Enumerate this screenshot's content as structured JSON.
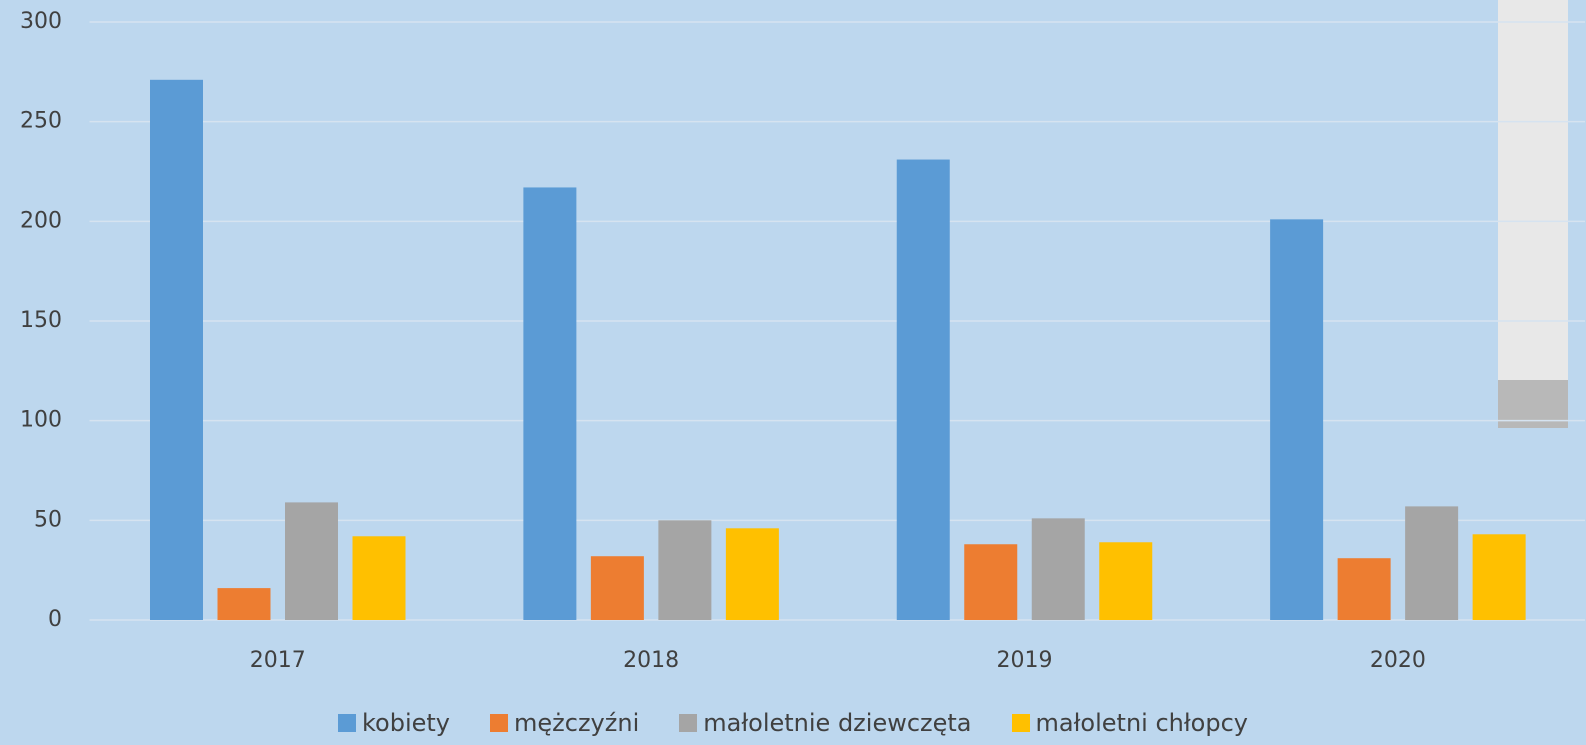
{
  "chart_data": {
    "type": "bar",
    "categories": [
      "2017",
      "2018",
      "2019",
      "2020"
    ],
    "series": [
      {
        "name": "kobiety",
        "color": "#5b9bd5",
        "values": [
          271,
          217,
          231,
          201
        ]
      },
      {
        "name": "mężczyźni",
        "color": "#ed7d31",
        "values": [
          16,
          32,
          38,
          31
        ]
      },
      {
        "name": "małoletnie dziewczęta",
        "color": "#a5a5a5",
        "values": [
          59,
          50,
          51,
          57
        ]
      },
      {
        "name": "małoletni chłopcy",
        "color": "#ffc000",
        "values": [
          42,
          46,
          39,
          43
        ]
      }
    ],
    "ylim": [
      0,
      300
    ],
    "yticks": [
      0,
      50,
      100,
      150,
      200,
      250,
      300
    ],
    "grid": true,
    "legend": "bottom"
  }
}
